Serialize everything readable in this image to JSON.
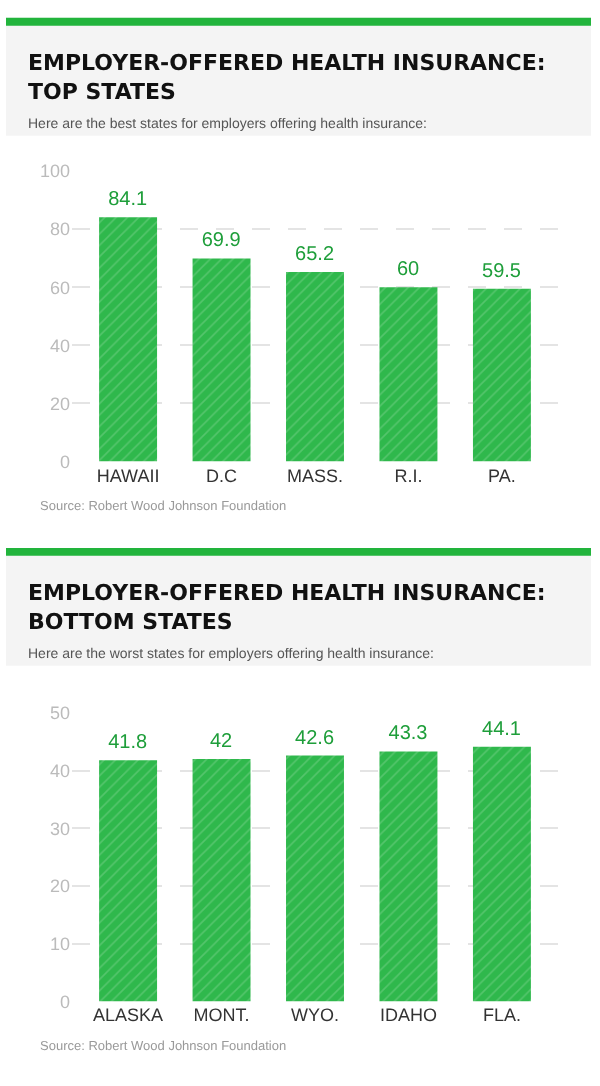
{
  "chart_data": [
    {
      "type": "bar",
      "title": "EMPLOYER-OFFERED HEALTH INSURANCE: TOP STATES",
      "subtitle": "Here are the best states for employers offering health insurance:",
      "categories": [
        "HAWAII",
        "D.C",
        "MASS.",
        "R.I.",
        "PA."
      ],
      "values": [
        84.1,
        69.9,
        65.2,
        60,
        59.5
      ],
      "color": "#2fb84c",
      "data_labels": true,
      "ylim": [
        0,
        100
      ],
      "yticks": [
        0,
        20,
        40,
        60,
        80,
        100
      ],
      "grid": "y",
      "annotations": [
        "Source: Robert Wood Johnson Foundation"
      ]
    },
    {
      "type": "bar",
      "title": "EMPLOYER-OFFERED HEALTH INSURANCE: BOTTOM STATES",
      "subtitle": "Here are the worst states for employers offering health insurance:",
      "categories": [
        "ALASKA",
        "MONT.",
        "WYO.",
        "IDAHO",
        "FLA."
      ],
      "values": [
        41.8,
        42,
        42.6,
        43.3,
        44.1
      ],
      "color": "#2fb84c",
      "data_labels": true,
      "ylim": [
        0,
        50
      ],
      "yticks": [
        0,
        10,
        20,
        30,
        40,
        50
      ],
      "grid": "y",
      "annotations": [
        "Source: Robert Wood Johnson Foundation"
      ]
    }
  ]
}
